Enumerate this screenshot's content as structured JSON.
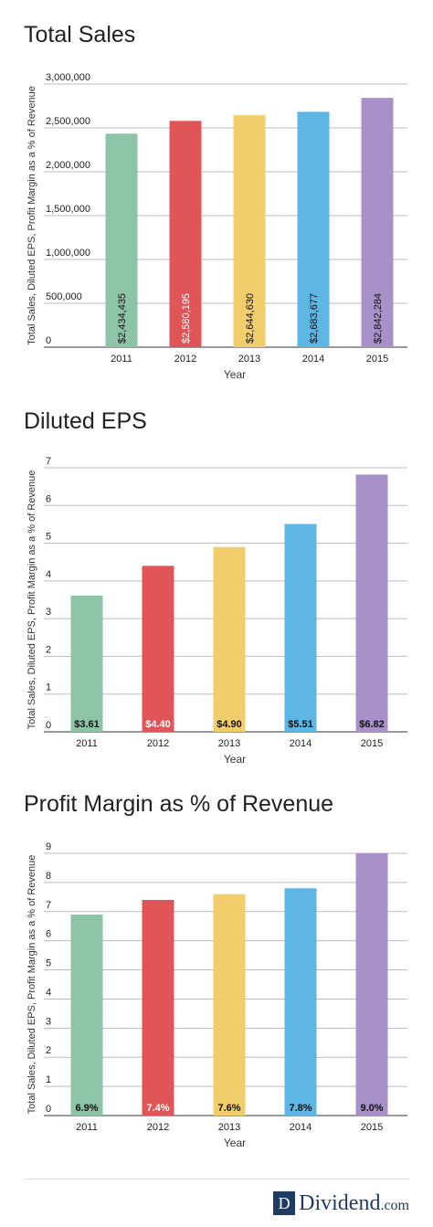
{
  "chart_data": [
    {
      "type": "bar",
      "title": "Total Sales",
      "xlabel": "Year",
      "ylabel": "Total Sales, Diluted EPS, Profit Margin as a % of Revenue",
      "categories": [
        "2011",
        "2012",
        "2013",
        "2014",
        "2015"
      ],
      "values": [
        2434435,
        2580195,
        2644630,
        2683677,
        2842284
      ],
      "data_labels": [
        "$2,434,435",
        "$2,580,195",
        "$2,644,630",
        "$2,683,677",
        "$2,842,284"
      ],
      "ylim": [
        0,
        3000000
      ],
      "yticks": [
        0,
        500000,
        1000000,
        1500000,
        2000000,
        2500000,
        3000000
      ],
      "ytick_labels": [
        "0",
        "500,000",
        "1,000,000",
        "1,500,000",
        "2,000,000",
        "2,500,000",
        "3,000,000"
      ],
      "grid": true
    },
    {
      "type": "bar",
      "title": "Diluted EPS",
      "xlabel": "Year",
      "ylabel": "Total Sales, Diluted EPS, Profit Margin as a % of Revenue",
      "categories": [
        "2011",
        "2012",
        "2013",
        "2014",
        "2015"
      ],
      "values": [
        3.61,
        4.4,
        4.9,
        5.51,
        6.82
      ],
      "data_labels": [
        "$3.61",
        "$4.40",
        "$4.90",
        "$5.51",
        "$6.82"
      ],
      "ylim": [
        0,
        7
      ],
      "yticks": [
        0,
        1,
        2,
        3,
        4,
        5,
        6,
        7
      ],
      "ytick_labels": [
        "0",
        "1",
        "2",
        "3",
        "4",
        "5",
        "6",
        "7"
      ],
      "grid": true
    },
    {
      "type": "bar",
      "title": "Profit Margin as % of Revenue",
      "xlabel": "Year",
      "ylabel": "Total Sales, Diluted EPS, Profit Margin as a % of Revenue",
      "categories": [
        "2011",
        "2012",
        "2013",
        "2014",
        "2015"
      ],
      "values": [
        6.9,
        7.4,
        7.6,
        7.8,
        9.0
      ],
      "data_labels": [
        "6.9%",
        "7.4%",
        "7.6%",
        "7.8%",
        "9.0%"
      ],
      "ylim": [
        0,
        9
      ],
      "yticks": [
        0,
        1,
        2,
        3,
        4,
        5,
        6,
        7,
        8,
        9
      ],
      "ytick_labels": [
        "0",
        "1",
        "2",
        "3",
        "4",
        "5",
        "6",
        "7",
        "8",
        "9"
      ],
      "grid": true
    }
  ],
  "colors": [
    "#8dc3a7",
    "#e05557",
    "#f2cd6b",
    "#5db6e4",
    "#a890c9"
  ],
  "label_colors": [
    "#111111",
    "#ffffff",
    "#111111",
    "#111111",
    "#111111"
  ],
  "logo": {
    "box_letter": "D",
    "name": "Dividend",
    "tld": ".com"
  }
}
